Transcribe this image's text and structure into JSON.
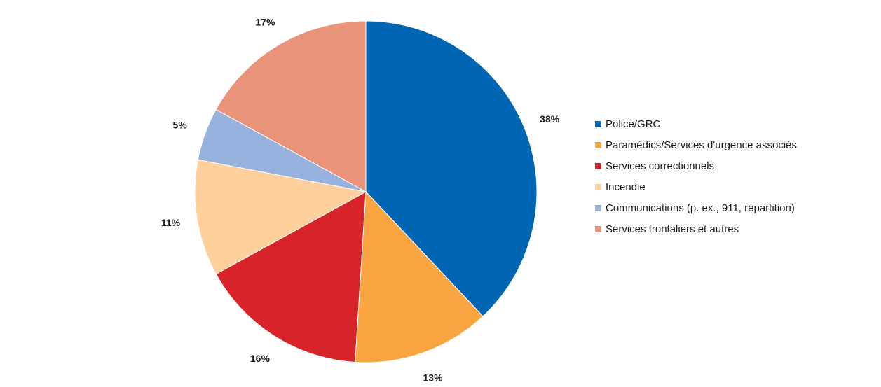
{
  "chart_data": {
    "type": "pie",
    "title": "",
    "legend_position": "right",
    "start_angle_deg": 0,
    "direction": "clockwise",
    "slices": [
      {
        "label": "Police/GRC",
        "value": 38,
        "value_label": "38%",
        "color": "#0066b3"
      },
      {
        "label": "Paramédics/Services d'urgence associés",
        "value": 13,
        "value_label": "13%",
        "color": "#f9a541"
      },
      {
        "label": "Services correctionnels",
        "value": 16,
        "value_label": "16%",
        "color": "#d7242a"
      },
      {
        "label": "Incendie",
        "value": 11,
        "value_label": "11%",
        "color": "#fdd09c"
      },
      {
        "label": "Communications (p. ex., 911, répartition)",
        "value": 5,
        "value_label": "5%",
        "color": "#97b3dd"
      },
      {
        "label": "Services frontaliers et autres",
        "value": 17,
        "value_label": "17%",
        "color": "#e8937a"
      }
    ]
  }
}
